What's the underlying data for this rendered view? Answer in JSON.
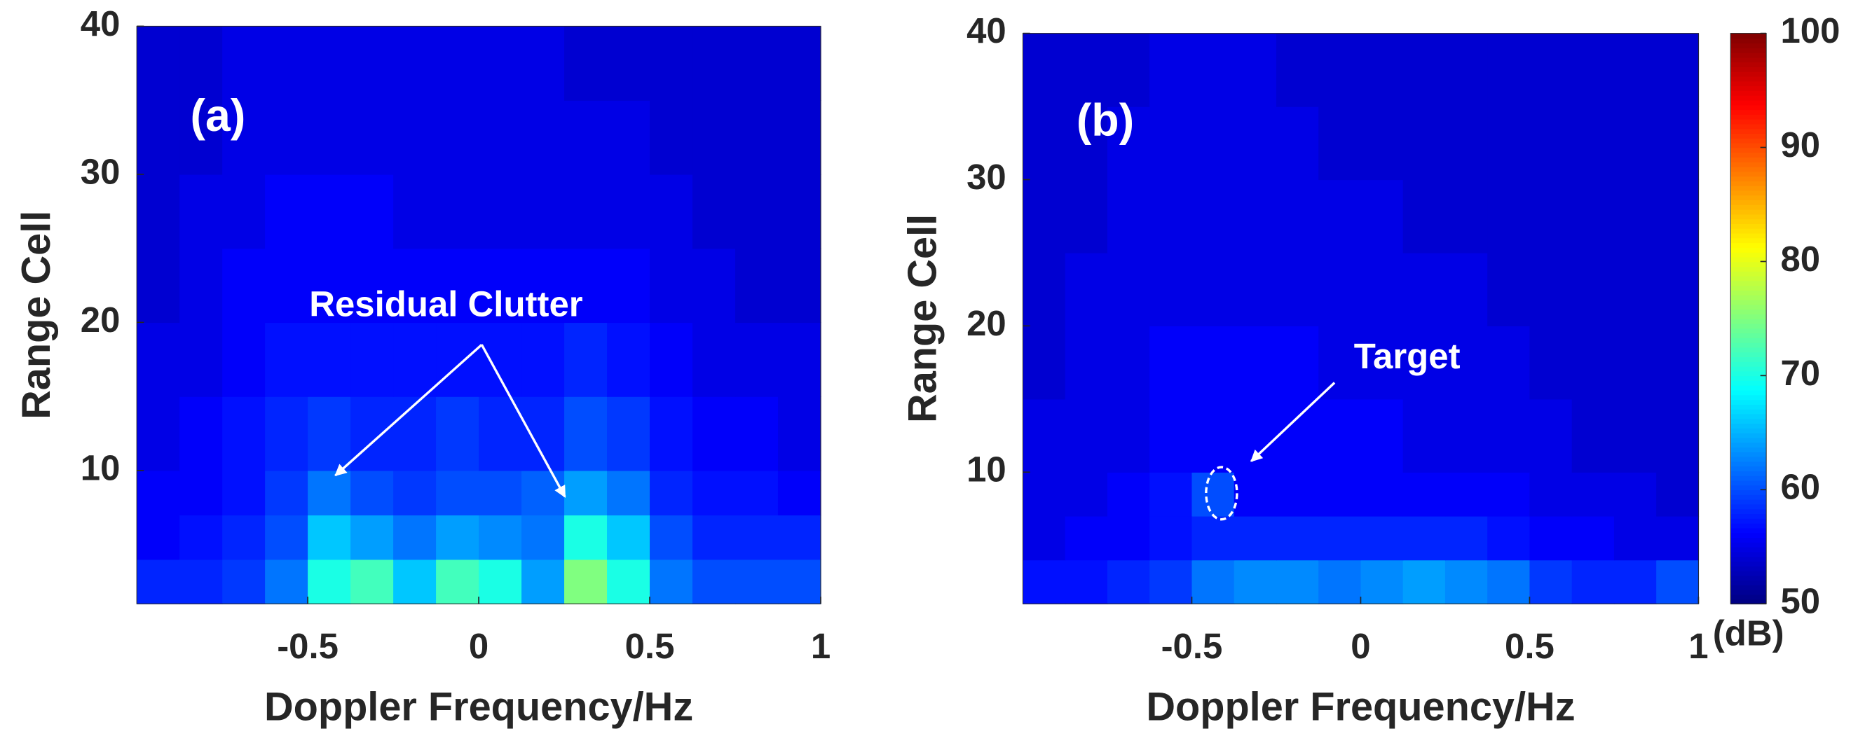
{
  "chart_data": [
    {
      "type": "heatmap",
      "label": "(a)",
      "annotation": "Residual Clutter",
      "xlabel": "Doppler Frequency/Hz",
      "ylabel": "Range Cell",
      "xlim": [
        -1,
        1
      ],
      "ylim": [
        1,
        40
      ],
      "xticks": [
        -0.5,
        0,
        0.5,
        1
      ],
      "yticks": [
        10,
        20,
        30,
        40
      ],
      "xbins": [
        -1,
        -0.875,
        -0.75,
        -0.625,
        -0.5,
        -0.375,
        -0.25,
        -0.125,
        0,
        0.125,
        0.25,
        0.375,
        0.5,
        0.625,
        0.75,
        0.875,
        1
      ],
      "ybins": [
        1,
        4,
        7,
        10,
        15,
        20,
        25,
        30,
        35,
        40
      ],
      "colormap": "jet",
      "clim": [
        50,
        100
      ],
      "z": [
        [
          58,
          58,
          59,
          62,
          70,
          72,
          66,
          72,
          70,
          64,
          75,
          70,
          62,
          60,
          60,
          60
        ],
        [
          56,
          57,
          58,
          60,
          66,
          64,
          62,
          64,
          63,
          62,
          70,
          66,
          60,
          58,
          58,
          58
        ],
        [
          56,
          56,
          57,
          59,
          62,
          60,
          59,
          60,
          60,
          61,
          64,
          62,
          58,
          57,
          57,
          56
        ],
        [
          55,
          56,
          57,
          58,
          59,
          58,
          58,
          59,
          58,
          58,
          60,
          59,
          57,
          56,
          56,
          55
        ],
        [
          55,
          55,
          56,
          57,
          57,
          57,
          57,
          57,
          57,
          57,
          58,
          57,
          56,
          55,
          55,
          55
        ],
        [
          54,
          55,
          56,
          56,
          56,
          56,
          56,
          56,
          56,
          56,
          56,
          56,
          55,
          55,
          54,
          54
        ],
        [
          54,
          55,
          55,
          56,
          56,
          56,
          55,
          55,
          55,
          55,
          55,
          55,
          55,
          54,
          54,
          54
        ],
        [
          54,
          54,
          55,
          55,
          55,
          55,
          55,
          55,
          55,
          55,
          55,
          55,
          54,
          54,
          54,
          54
        ],
        [
          54,
          54,
          55,
          55,
          55,
          55,
          55,
          55,
          55,
          55,
          54,
          54,
          54,
          54,
          54,
          54
        ]
      ]
    },
    {
      "type": "heatmap",
      "label": "(b)",
      "annotation": "Target",
      "xlabel": "Doppler Frequency/Hz",
      "ylabel": "Range Cell",
      "xlim": [
        -1,
        1
      ],
      "ylim": [
        1,
        40
      ],
      "xticks": [
        -0.5,
        0,
        0.5,
        1
      ],
      "yticks": [
        10,
        20,
        30,
        40
      ],
      "xbins": [
        -1,
        -0.875,
        -0.75,
        -0.625,
        -0.5,
        -0.375,
        -0.25,
        -0.125,
        0,
        0.125,
        0.25,
        0.375,
        0.5,
        0.625,
        0.75,
        0.875,
        1
      ],
      "ybins": [
        1,
        4,
        7,
        10,
        15,
        20,
        25,
        30,
        35,
        40
      ],
      "colormap": "jet",
      "clim": [
        50,
        100
      ],
      "z": [
        [
          57,
          57,
          58,
          59,
          62,
          63,
          63,
          62,
          63,
          64,
          63,
          62,
          59,
          58,
          58,
          60
        ],
        [
          55,
          56,
          56,
          57,
          58,
          58,
          58,
          58,
          58,
          58,
          58,
          57,
          56,
          56,
          55,
          55
        ],
        [
          55,
          55,
          56,
          57,
          60,
          56,
          56,
          56,
          56,
          56,
          56,
          56,
          55,
          55,
          55,
          54
        ],
        [
          55,
          55,
          55,
          56,
          56,
          56,
          56,
          56,
          56,
          55,
          55,
          55,
          55,
          54,
          54,
          54
        ],
        [
          54,
          55,
          55,
          56,
          56,
          56,
          56,
          55,
          55,
          55,
          55,
          55,
          54,
          54,
          54,
          54
        ],
        [
          54,
          55,
          55,
          55,
          55,
          55,
          55,
          55,
          55,
          55,
          55,
          54,
          54,
          54,
          54,
          54
        ],
        [
          54,
          54,
          55,
          55,
          55,
          55,
          55,
          55,
          55,
          54,
          54,
          54,
          54,
          54,
          54,
          54
        ],
        [
          54,
          54,
          55,
          55,
          55,
          55,
          55,
          54,
          54,
          54,
          54,
          54,
          54,
          54,
          54,
          54
        ],
        [
          54,
          54,
          54,
          55,
          55,
          55,
          54,
          54,
          54,
          54,
          54,
          54,
          54,
          54,
          54,
          54
        ]
      ],
      "colorbar": {
        "label": "(dB)",
        "lim": [
          50,
          100
        ],
        "ticks": [
          50,
          60,
          70,
          80,
          90,
          100
        ]
      }
    }
  ]
}
